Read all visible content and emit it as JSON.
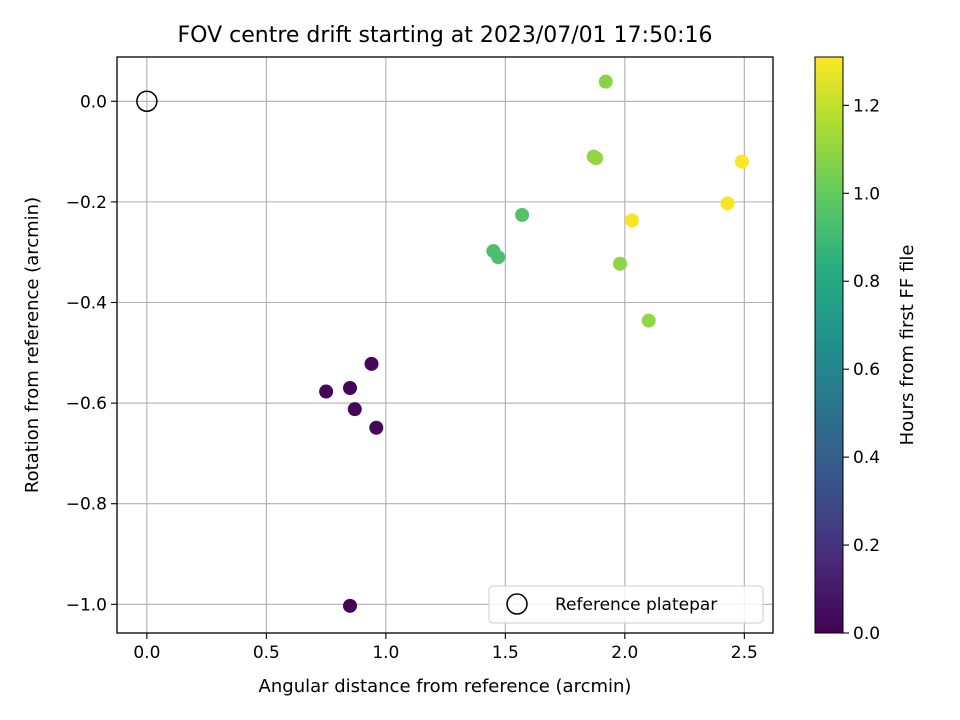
{
  "chart_data": {
    "type": "scatter",
    "title": "FOV centre drift starting at 2023/07/01 17:50:16",
    "xlabel": "Angular distance from reference (arcmin)",
    "ylabel": "Rotation from reference (arcmin)",
    "xlim": [
      -0.125,
      2.62
    ],
    "ylim": [
      -1.057,
      0.088
    ],
    "xticks": [
      0.0,
      0.5,
      1.0,
      1.5,
      2.0,
      2.5
    ],
    "xtick_labels": [
      "0.0",
      "0.5",
      "1.0",
      "1.5",
      "2.0",
      "2.5"
    ],
    "yticks": [
      0.0,
      -0.2,
      -0.4,
      -0.6,
      -0.8,
      -1.0
    ],
    "ytick_labels": [
      "0.0",
      "−0.2",
      "−0.4",
      "−0.6",
      "−0.8",
      "−1.0"
    ],
    "grid": true,
    "legend_position": "lower-right",
    "legend": [
      "Reference platepar"
    ],
    "colorbar": {
      "label": "Hours from first FF file",
      "colormap": "viridis",
      "range": [
        0.0,
        1.31
      ],
      "ticks": [
        0.0,
        0.2,
        0.4,
        0.6,
        0.8,
        1.0,
        1.2
      ],
      "tick_labels": [
        "0.0",
        "0.2",
        "0.4",
        "0.6",
        "0.8",
        "1.0",
        "1.2"
      ]
    },
    "reference_point": {
      "x": 0.0,
      "y": 0.0,
      "name": "Reference platepar"
    },
    "points": [
      {
        "x": 0.85,
        "y": -1.003,
        "c": 0.01
      },
      {
        "x": 0.75,
        "y": -0.577,
        "c": 0.02
      },
      {
        "x": 0.85,
        "y": -0.57,
        "c": 0.02
      },
      {
        "x": 0.87,
        "y": -0.612,
        "c": 0.02
      },
      {
        "x": 0.94,
        "y": -0.522,
        "c": 0.03
      },
      {
        "x": 0.96,
        "y": -0.649,
        "c": 0.03
      },
      {
        "x": 1.45,
        "y": -0.298,
        "c": 0.93
      },
      {
        "x": 1.47,
        "y": -0.31,
        "c": 0.93
      },
      {
        "x": 1.57,
        "y": -0.226,
        "c": 0.95
      },
      {
        "x": 1.87,
        "y": -0.11,
        "c": 1.09
      },
      {
        "x": 1.88,
        "y": -0.113,
        "c": 1.1
      },
      {
        "x": 1.92,
        "y": 0.039,
        "c": 1.08
      },
      {
        "x": 1.98,
        "y": -0.323,
        "c": 1.09
      },
      {
        "x": 2.03,
        "y": -0.237,
        "c": 1.3
      },
      {
        "x": 2.1,
        "y": -0.436,
        "c": 1.1
      },
      {
        "x": 2.43,
        "y": -0.203,
        "c": 1.3
      },
      {
        "x": 2.49,
        "y": -0.12,
        "c": 1.31
      }
    ]
  }
}
